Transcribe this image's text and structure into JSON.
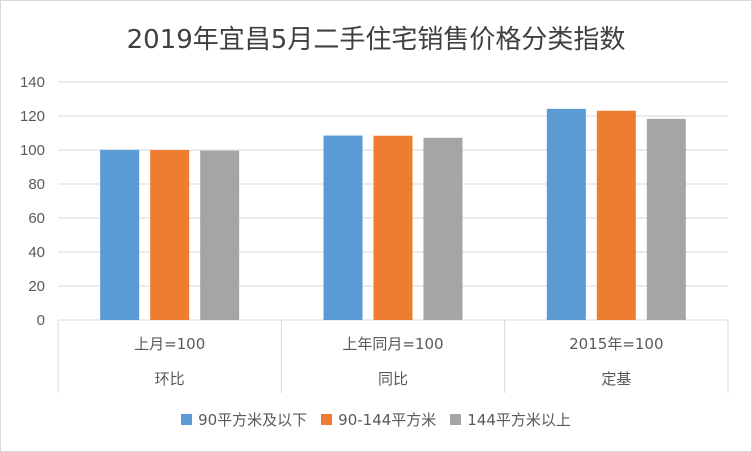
{
  "chart_data": {
    "type": "bar",
    "title": "2019年宜昌5月二手住宅销售价格分类指数",
    "categories": [
      {
        "sub": "上月=100",
        "group": "环比"
      },
      {
        "sub": "上年同月=100",
        "group": "同比"
      },
      {
        "sub": "2015年=100",
        "group": "定基"
      }
    ],
    "series": [
      {
        "name": "90平方米及以下",
        "color": "#5b9bd5",
        "values": [
          100.1,
          108.5,
          124.2
        ]
      },
      {
        "name": "90-144平方米",
        "color": "#ed7d31",
        "values": [
          100.0,
          108.4,
          123.1
        ]
      },
      {
        "name": "144平方米以上",
        "color": "#a5a5a5",
        "values": [
          99.6,
          107.2,
          118.3
        ]
      }
    ],
    "ylim": [
      0,
      140
    ],
    "yticks": [
      "0",
      "20",
      "40",
      "60",
      "80",
      "100",
      "120",
      "140"
    ],
    "grid": true,
    "legend_position": "bottom"
  }
}
